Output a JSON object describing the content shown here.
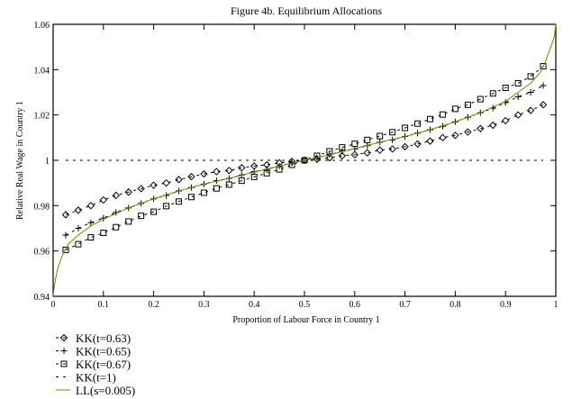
{
  "chart_data": {
    "type": "line",
    "title": "Figure 4b. Equilibrium Allocations",
    "xlabel": "Proportion of Labour Force in Country 1",
    "ylabel": "Relative Real Wage in Country 1",
    "xlim": [
      0,
      1
    ],
    "ylim": [
      0.94,
      1.06
    ],
    "xticks": [
      "0",
      "0.1",
      "0.2",
      "0.3",
      "0.4",
      "0.5",
      "0.6",
      "0.7",
      "0.8",
      "0.9",
      "1"
    ],
    "yticks": [
      "0.94",
      "0.96",
      "0.98",
      "1",
      "1.02",
      "1.04",
      "1.06"
    ],
    "grid": false,
    "legend_placement": "bottom-left",
    "series": [
      {
        "name": "KK(t=0.63)",
        "marker": "diamond",
        "line": "dashed",
        "color": "#000000",
        "x": [
          0.025,
          0.05,
          0.075,
          0.1,
          0.125,
          0.15,
          0.175,
          0.2,
          0.225,
          0.25,
          0.275,
          0.3,
          0.325,
          0.35,
          0.375,
          0.4,
          0.425,
          0.45,
          0.475,
          0.5,
          0.525,
          0.55,
          0.575,
          0.6,
          0.625,
          0.65,
          0.675,
          0.7,
          0.725,
          0.75,
          0.775,
          0.8,
          0.825,
          0.85,
          0.875,
          0.9,
          0.925,
          0.95,
          0.975
        ],
        "y": [
          0.976,
          0.978,
          0.98,
          0.9825,
          0.9845,
          0.986,
          0.9875,
          0.989,
          0.99,
          0.9915,
          0.9928,
          0.994,
          0.995,
          0.9955,
          0.9967,
          0.9975,
          0.998,
          0.9989,
          0.9995,
          1.0,
          1.0005,
          1.0011,
          1.002,
          1.0025,
          1.0033,
          1.0045,
          1.005,
          1.006,
          1.0072,
          1.0085,
          1.01,
          1.011,
          1.0125,
          1.014,
          1.0155,
          1.0175,
          1.02,
          1.022,
          1.0245
        ]
      },
      {
        "name": "KK(t=0.65)",
        "marker": "plus",
        "line": "dashed",
        "color": "#000000",
        "x": [
          0.025,
          0.05,
          0.075,
          0.1,
          0.125,
          0.15,
          0.175,
          0.2,
          0.225,
          0.25,
          0.275,
          0.3,
          0.325,
          0.35,
          0.375,
          0.4,
          0.425,
          0.45,
          0.475,
          0.5,
          0.525,
          0.55,
          0.575,
          0.6,
          0.625,
          0.65,
          0.675,
          0.7,
          0.725,
          0.75,
          0.775,
          0.8,
          0.825,
          0.85,
          0.875,
          0.9,
          0.925,
          0.95,
          0.975
        ],
        "y": [
          0.967,
          0.97,
          0.9725,
          0.9745,
          0.977,
          0.979,
          0.981,
          0.983,
          0.9845,
          0.9865,
          0.988,
          0.9895,
          0.991,
          0.992,
          0.9935,
          0.995,
          0.996,
          0.9975,
          0.9988,
          1.0,
          1.0012,
          1.0025,
          1.004,
          1.005,
          1.0065,
          1.008,
          1.009,
          1.0105,
          1.012,
          1.0135,
          1.015,
          1.017,
          1.019,
          1.021,
          1.023,
          1.0255,
          1.028,
          1.03,
          1.033
        ]
      },
      {
        "name": "KK(t=0.67)",
        "marker": "square",
        "line": "dashed",
        "color": "#000000",
        "x": [
          0.025,
          0.05,
          0.075,
          0.1,
          0.125,
          0.15,
          0.175,
          0.2,
          0.225,
          0.25,
          0.275,
          0.3,
          0.325,
          0.35,
          0.375,
          0.4,
          0.425,
          0.45,
          0.475,
          0.5,
          0.525,
          0.55,
          0.575,
          0.6,
          0.625,
          0.65,
          0.675,
          0.7,
          0.725,
          0.75,
          0.775,
          0.8,
          0.825,
          0.85,
          0.875,
          0.9,
          0.925,
          0.95,
          0.975
        ],
        "y": [
          0.9605,
          0.963,
          0.966,
          0.968,
          0.9705,
          0.973,
          0.9755,
          0.9773,
          0.9798,
          0.9818,
          0.9838,
          0.9857,
          0.9876,
          0.9893,
          0.991,
          0.9927,
          0.9943,
          0.996,
          0.998,
          1.0,
          1.002,
          1.004,
          1.0057,
          1.0073,
          1.009,
          1.0107,
          1.0124,
          1.0143,
          1.0162,
          1.0182,
          1.0202,
          1.0227,
          1.0245,
          1.027,
          1.0295,
          1.032,
          1.034,
          1.037,
          1.0415
        ]
      },
      {
        "name": "KK(t=1)",
        "marker": "none",
        "line": "dashed",
        "color": "#000000",
        "x": [
          0.025,
          0.975
        ],
        "y": [
          1.0,
          1.0
        ]
      },
      {
        "name": "LL(s=0.005)",
        "marker": "none",
        "line": "solid",
        "color": "#808000",
        "x": [
          0,
          0.002,
          0.005,
          0.01,
          0.02,
          0.03,
          0.05,
          0.075,
          0.1,
          0.15,
          0.2,
          0.25,
          0.3,
          0.35,
          0.4,
          0.45,
          0.5,
          0.55,
          0.6,
          0.65,
          0.7,
          0.75,
          0.8,
          0.85,
          0.9,
          0.925,
          0.95,
          0.97,
          0.98,
          0.99,
          0.995,
          0.998,
          1
        ],
        "y": [
          0.94,
          0.944,
          0.948,
          0.953,
          0.959,
          0.963,
          0.967,
          0.971,
          0.974,
          0.979,
          0.983,
          0.9865,
          0.9895,
          0.992,
          0.9948,
          0.9975,
          1.0,
          1.0025,
          1.0052,
          1.008,
          1.0105,
          1.0135,
          1.017,
          1.021,
          1.026,
          1.03,
          1.034,
          1.039,
          1.044,
          1.05,
          1.053,
          1.056,
          1.06
        ]
      }
    ]
  }
}
